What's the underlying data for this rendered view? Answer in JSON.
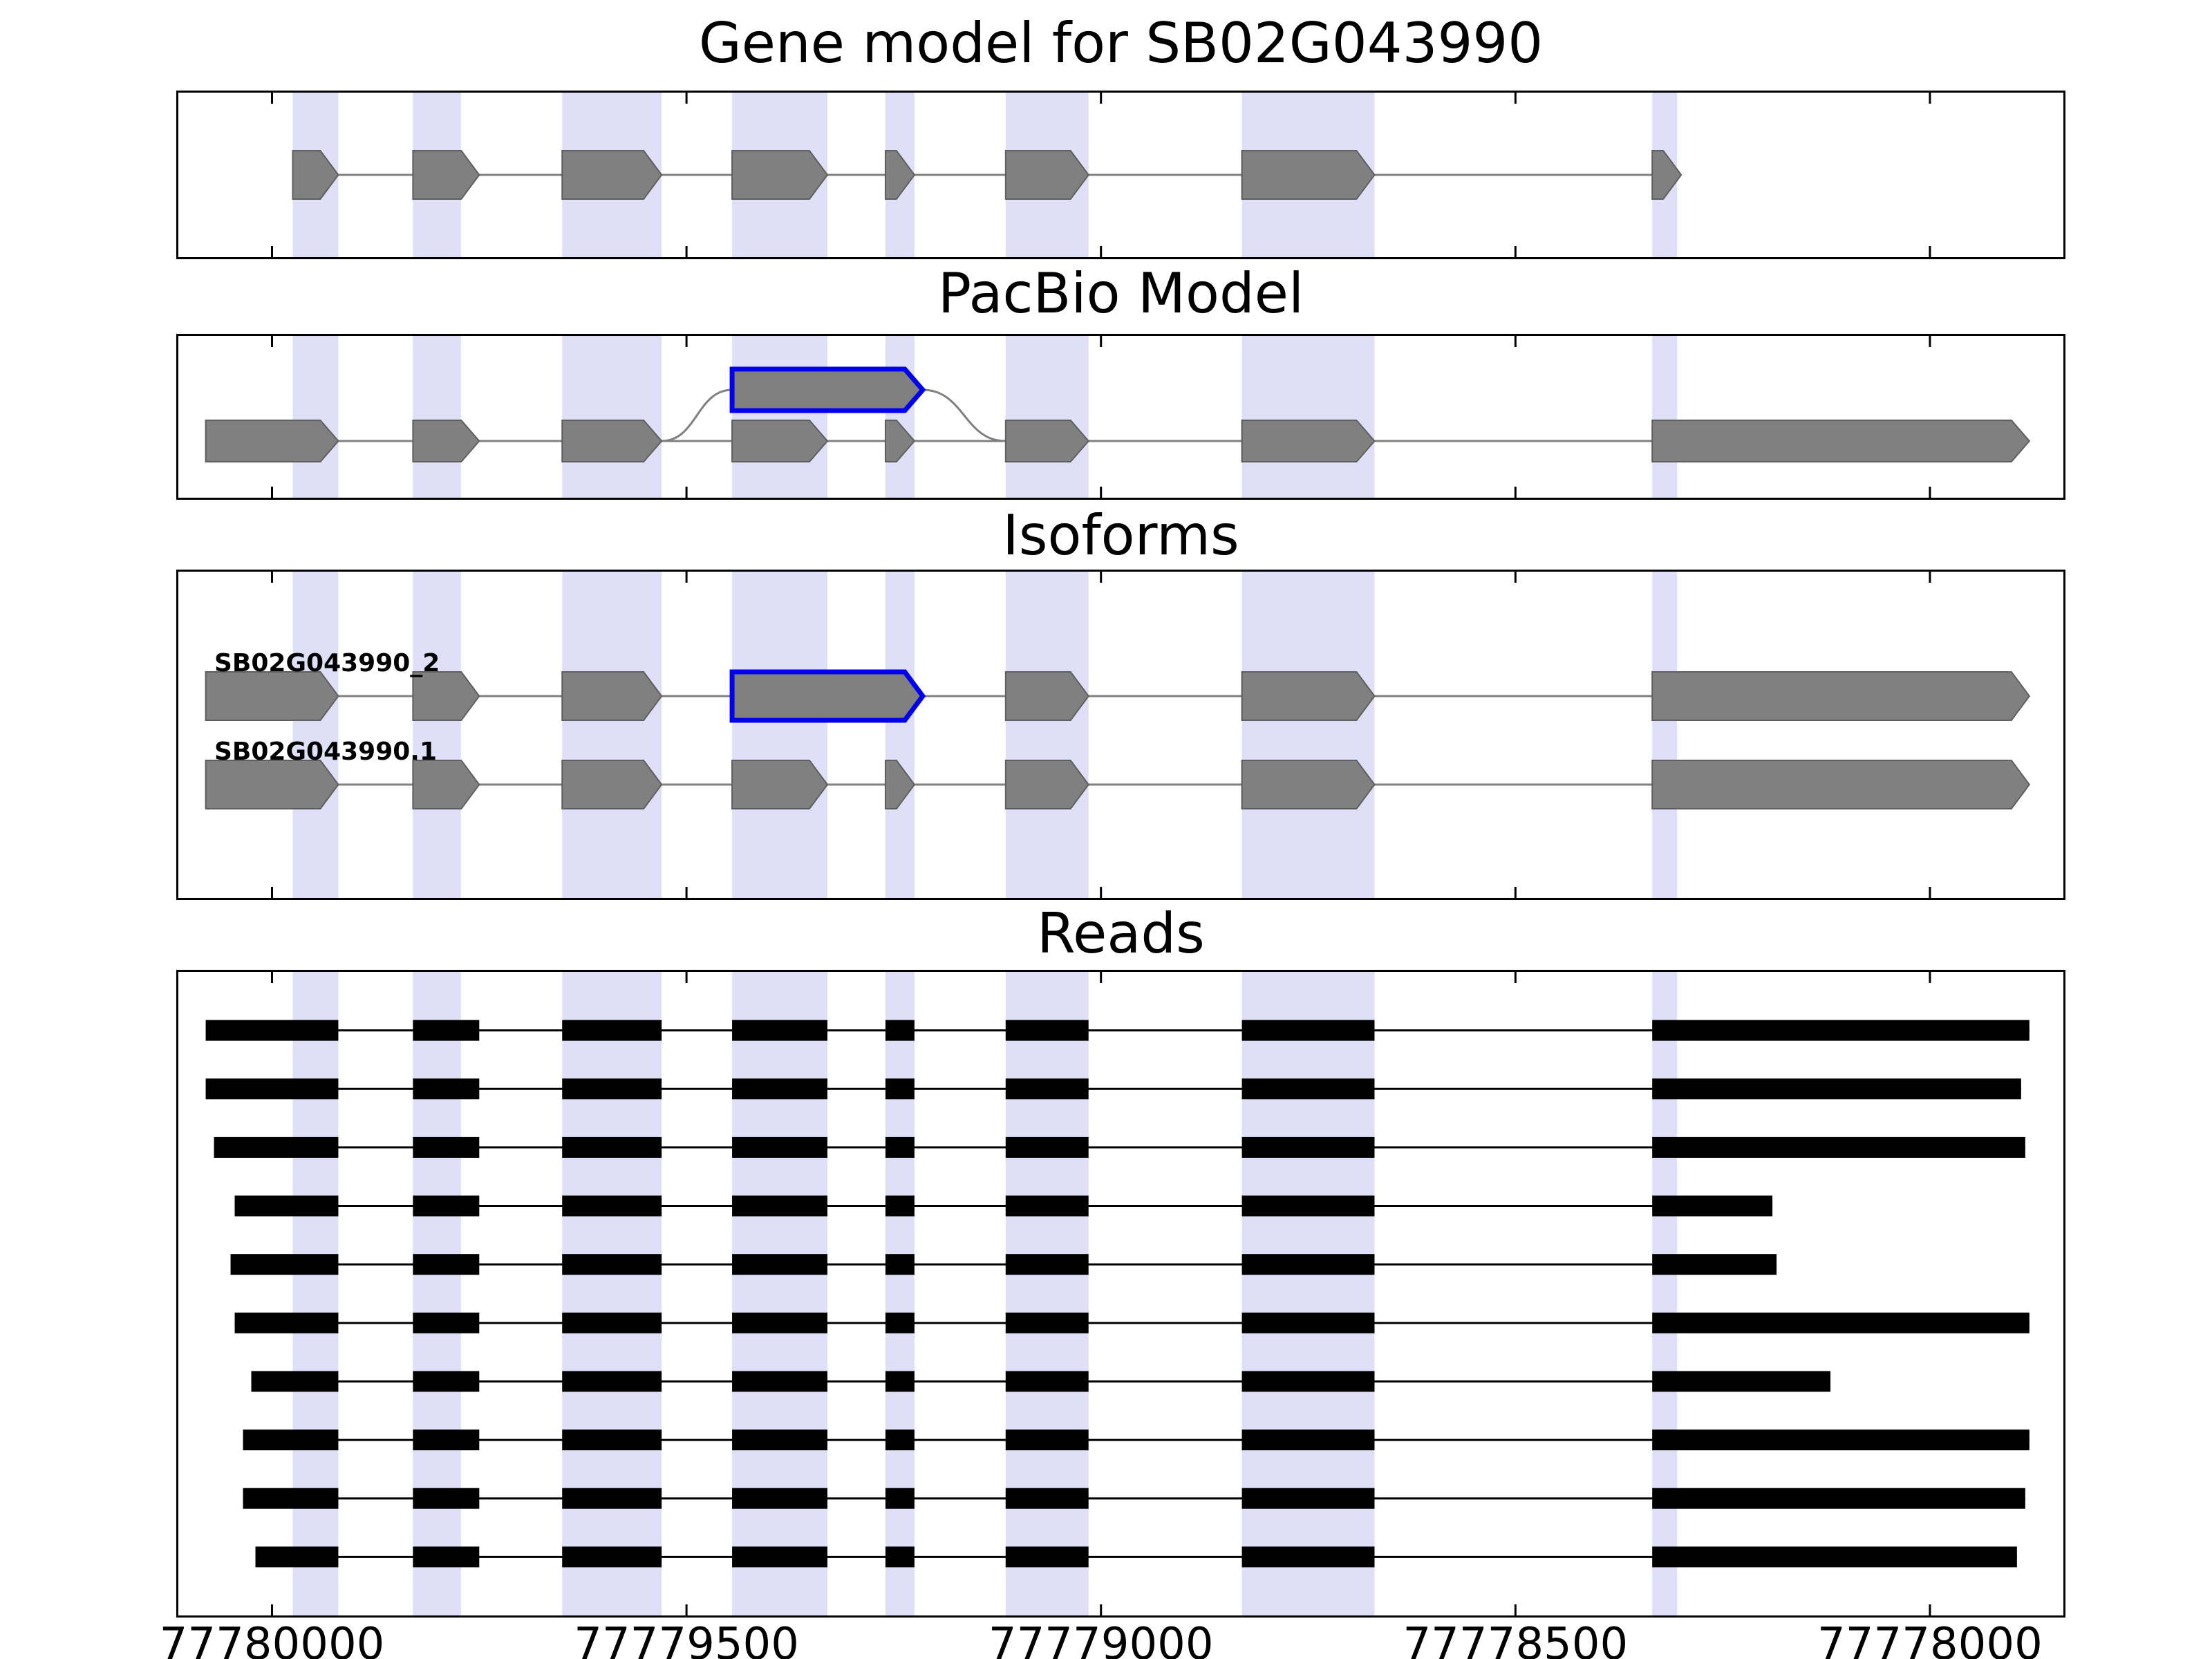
{
  "colors": {
    "exon_fill": "#808080",
    "exon_edge": "#5f5f5f",
    "highlight_band": "#dfdff7",
    "blue_outline": "#0000ee",
    "connector": "#808080",
    "read_fill": "#000000",
    "panel_border": "#000000",
    "text": "#000000"
  },
  "chart_data": {
    "type": "genome-browser-tracks",
    "gene_id": "SB02G043990",
    "x_axis": {
      "unit": "genomic position (bp)",
      "xlim": [
        77780113,
        77777839
      ],
      "ticks": [
        77780000,
        77779500,
        77779000,
        77778500,
        77778000
      ],
      "tick_labels": [
        "77780000",
        "77779500",
        "77779000",
        "77778500",
        "77778000"
      ]
    },
    "highlight_bands": [
      [
        77779975,
        77779920
      ],
      [
        77779830,
        77779772
      ],
      [
        77779650,
        77779530
      ],
      [
        77779445,
        77779330
      ],
      [
        77779260,
        77779225
      ],
      [
        77779115,
        77779015
      ],
      [
        77778830,
        77778670
      ],
      [
        77778335,
        77778305
      ]
    ],
    "panels": [
      {
        "id": "gene_model",
        "title": "Gene model for SB02G043990",
        "line": [
          77779975,
          77778300
        ],
        "exons": [
          [
            77779975,
            77779920
          ],
          [
            77779830,
            77779750
          ],
          [
            77779650,
            77779530
          ],
          [
            77779445,
            77779330
          ],
          [
            77779260,
            77779225
          ],
          [
            77779115,
            77779015
          ],
          [
            77778830,
            77778670
          ],
          [
            77778335,
            77778300
          ]
        ]
      },
      {
        "id": "pacbio_model",
        "title": "PacBio Model",
        "line": [
          77780080,
          77777880
        ],
        "exons": [
          [
            77780080,
            77779920
          ],
          [
            77779830,
            77779750
          ],
          [
            77779650,
            77779530
          ],
          [
            77779445,
            77779330
          ],
          [
            77779260,
            77779225
          ],
          [
            77779115,
            77779015
          ],
          [
            77778830,
            77778670
          ],
          [
            77778335,
            77777880
          ]
        ],
        "elevated_exon": {
          "span": [
            77779445,
            77779215
          ],
          "outline": "blue"
        },
        "splice_curves": [
          [
            77779530,
            77779445
          ],
          [
            77779215,
            77779115
          ]
        ]
      },
      {
        "id": "isoforms",
        "title": "Isoforms",
        "rows": [
          {
            "label": "SB02G043990_2",
            "blue_exon_index": 3,
            "exons": [
              [
                77780080,
                77779920
              ],
              [
                77779830,
                77779750
              ],
              [
                77779650,
                77779530
              ],
              [
                77779445,
                77779215
              ],
              [
                77779115,
                77779015
              ],
              [
                77778830,
                77778670
              ],
              [
                77778335,
                77777880
              ]
            ]
          },
          {
            "label": "SB02G043990.1",
            "blue_exon_index": -1,
            "exons": [
              [
                77780080,
                77779920
              ],
              [
                77779830,
                77779750
              ],
              [
                77779650,
                77779530
              ],
              [
                77779445,
                77779330
              ],
              [
                77779260,
                77779225
              ],
              [
                77779115,
                77779015
              ],
              [
                77778830,
                77778670
              ],
              [
                77778335,
                77777880
              ]
            ]
          }
        ]
      },
      {
        "id": "reads",
        "title": "Reads",
        "shared_exons": {
          "first_exon_end": 77779920,
          "internal": [
            [
              77779830,
              77779750
            ],
            [
              77779650,
              77779530
            ],
            [
              77779445,
              77779330
            ],
            [
              77779260,
              77779225
            ],
            [
              77779115,
              77779015
            ],
            [
              77778830,
              77778670
            ]
          ],
          "last_exon_start": 77778335
        },
        "reads": [
          {
            "start": 77780080,
            "end": 77777880
          },
          {
            "start": 77780080,
            "end": 77777890
          },
          {
            "start": 77780070,
            "end": 77777885
          },
          {
            "start": 77780045,
            "end": 77778190
          },
          {
            "start": 77780050,
            "end": 77778185
          },
          {
            "start": 77780045,
            "end": 77777880
          },
          {
            "start": 77780025,
            "end": 77778120
          },
          {
            "start": 77780035,
            "end": 77777880
          },
          {
            "start": 77780035,
            "end": 77777885
          },
          {
            "start": 77780020,
            "end": 77777895
          }
        ]
      }
    ]
  }
}
